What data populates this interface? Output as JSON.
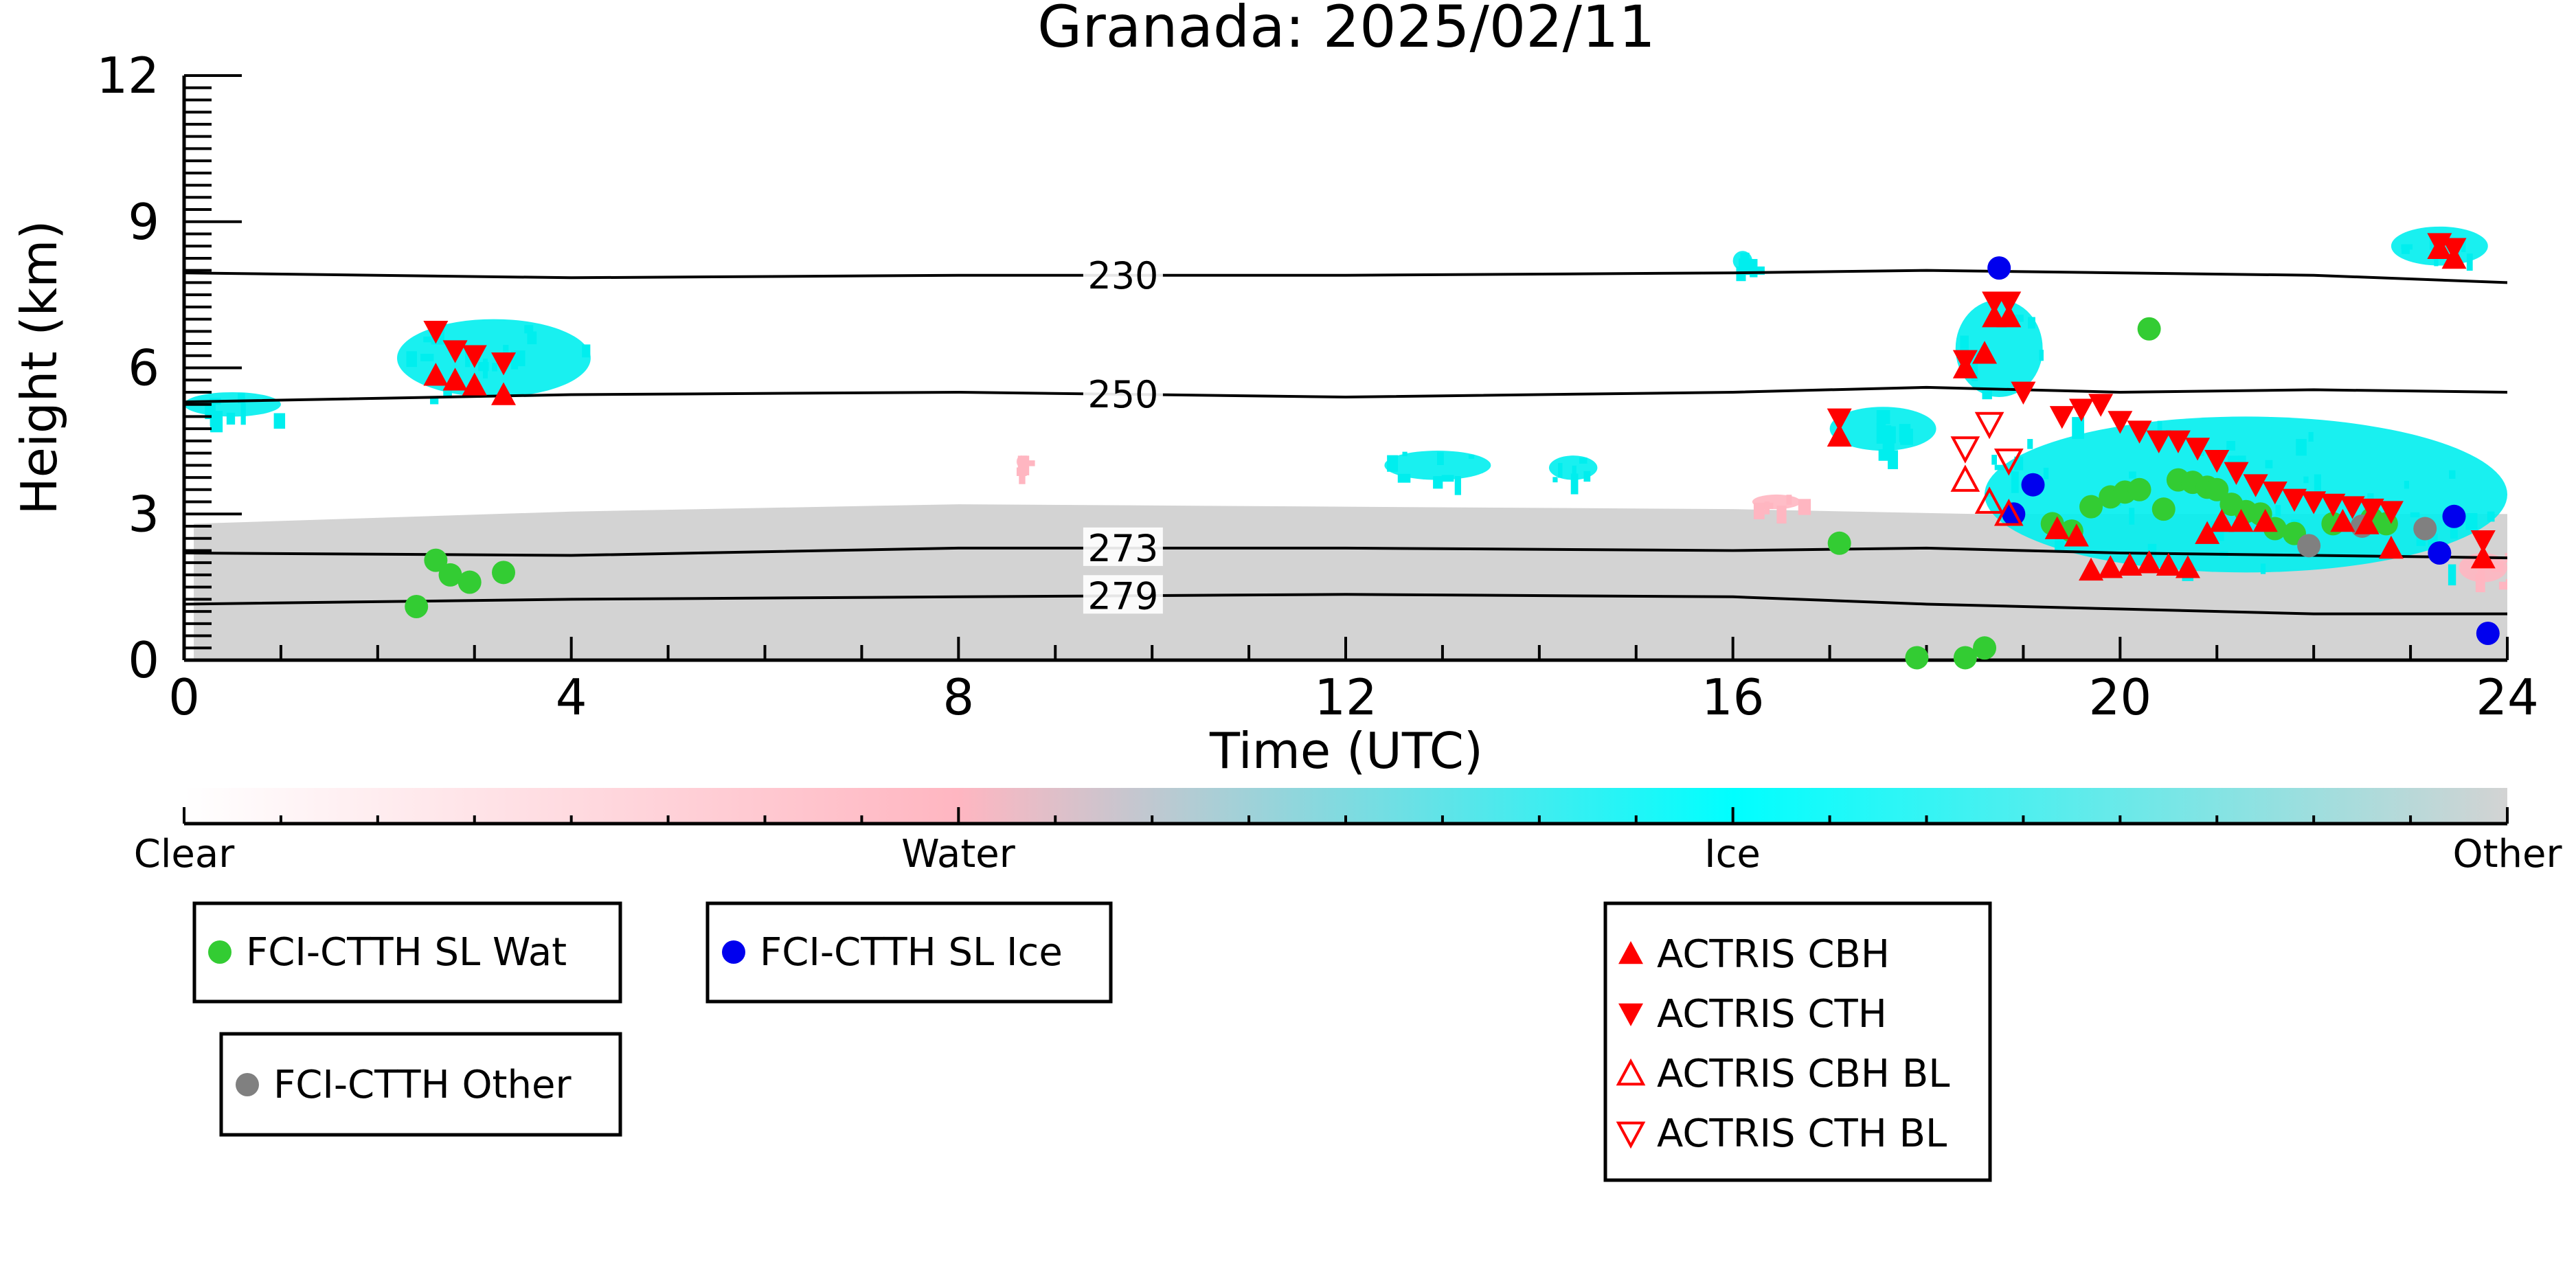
{
  "chart_data": {
    "type": "scatter",
    "title": "Granada: 2025/02/11",
    "xlabel": "Time (UTC)",
    "ylabel": "Height (km)",
    "xlim": [
      0,
      24
    ],
    "ylim": [
      0,
      12
    ],
    "xticks": [
      "0",
      "4",
      "8",
      "12",
      "16",
      "20",
      "24"
    ],
    "yticks": [
      "0",
      "3",
      "6",
      "9",
      "12"
    ],
    "colorbar": {
      "labels": [
        "Clear",
        "Water",
        "Ice",
        "Other"
      ],
      "colors": [
        "#ffffff",
        "#ffb6c1",
        "#00ffff",
        "#d3d3d3"
      ]
    },
    "colors": {
      "wat": "#33cc33",
      "ice": "#0000ee",
      "other": "#808080",
      "actris": "#ff0000",
      "cloud_ice": "#00eeee",
      "cloud_other": "#d3d3d3",
      "cloud_water": "#ffb6c1"
    },
    "isotherms": [
      {
        "label": "230",
        "points": [
          [
            0,
            7.95
          ],
          [
            4,
            7.85
          ],
          [
            8,
            7.9
          ],
          [
            12,
            7.9
          ],
          [
            16,
            7.95
          ],
          [
            18,
            8.0
          ],
          [
            20,
            7.95
          ],
          [
            22,
            7.9
          ],
          [
            24,
            7.75
          ]
        ]
      },
      {
        "label": "250",
        "points": [
          [
            0,
            5.3
          ],
          [
            4,
            5.45
          ],
          [
            8,
            5.5
          ],
          [
            12,
            5.4
          ],
          [
            16,
            5.5
          ],
          [
            18,
            5.6
          ],
          [
            20,
            5.5
          ],
          [
            22,
            5.55
          ],
          [
            24,
            5.5
          ]
        ]
      },
      {
        "label": "273",
        "points": [
          [
            0,
            2.2
          ],
          [
            4,
            2.15
          ],
          [
            8,
            2.3
          ],
          [
            12,
            2.3
          ],
          [
            16,
            2.25
          ],
          [
            18,
            2.3
          ],
          [
            20,
            2.2
          ],
          [
            22,
            2.15
          ],
          [
            24,
            2.1
          ]
        ]
      },
      {
        "label": "279",
        "points": [
          [
            0,
            1.15
          ],
          [
            4,
            1.25
          ],
          [
            8,
            1.3
          ],
          [
            12,
            1.35
          ],
          [
            16,
            1.3
          ],
          [
            18,
            1.15
          ],
          [
            20,
            1.05
          ],
          [
            22,
            0.95
          ],
          [
            24,
            0.95
          ]
        ]
      }
    ],
    "series": [
      {
        "name": "FCI-CTTH SL Wat",
        "points": [
          [
            2.4,
            1.1
          ],
          [
            2.6,
            2.05
          ],
          [
            2.75,
            1.75
          ],
          [
            2.95,
            1.6
          ],
          [
            3.3,
            1.8
          ],
          [
            17.1,
            2.4
          ],
          [
            17.9,
            0.05
          ],
          [
            18.4,
            0.05
          ],
          [
            18.6,
            0.25
          ],
          [
            19.3,
            2.8
          ],
          [
            19.5,
            2.65
          ],
          [
            19.7,
            3.15
          ],
          [
            19.9,
            3.35
          ],
          [
            20.05,
            3.45
          ],
          [
            20.2,
            3.5
          ],
          [
            20.3,
            6.8
          ],
          [
            20.45,
            3.1
          ],
          [
            20.6,
            3.7
          ],
          [
            20.75,
            3.65
          ],
          [
            20.9,
            3.55
          ],
          [
            21.0,
            3.5
          ],
          [
            21.15,
            3.2
          ],
          [
            21.3,
            3.05
          ],
          [
            21.45,
            3.0
          ],
          [
            21.6,
            2.7
          ],
          [
            21.8,
            2.6
          ],
          [
            22.2,
            2.8
          ],
          [
            22.6,
            2.9
          ],
          [
            22.75,
            2.8
          ]
        ]
      },
      {
        "name": "FCI-CTTH SL Ice",
        "points": [
          [
            18.75,
            8.05
          ],
          [
            18.9,
            3.0
          ],
          [
            19.1,
            3.6
          ],
          [
            23.3,
            2.2
          ],
          [
            23.45,
            2.95
          ],
          [
            23.8,
            0.55
          ]
        ]
      },
      {
        "name": "FCI-CTTH Other",
        "points": [
          [
            21.95,
            2.35
          ],
          [
            22.5,
            2.75
          ],
          [
            23.15,
            2.7
          ]
        ]
      },
      {
        "name": "ACTRIS CBH",
        "points": [
          [
            2.6,
            5.85
          ],
          [
            2.8,
            5.75
          ],
          [
            3.0,
            5.65
          ],
          [
            3.3,
            5.45
          ],
          [
            17.1,
            4.6
          ],
          [
            18.4,
            6.0
          ],
          [
            18.6,
            6.3
          ],
          [
            18.7,
            7.05
          ],
          [
            18.85,
            7.05
          ],
          [
            19.35,
            2.7
          ],
          [
            19.55,
            2.55
          ],
          [
            19.7,
            1.85
          ],
          [
            19.9,
            1.9
          ],
          [
            20.1,
            1.95
          ],
          [
            20.3,
            2.0
          ],
          [
            20.5,
            1.95
          ],
          [
            20.7,
            1.9
          ],
          [
            20.9,
            2.6
          ],
          [
            21.05,
            2.85
          ],
          [
            21.25,
            2.85
          ],
          [
            21.5,
            2.85
          ],
          [
            22.3,
            2.85
          ],
          [
            22.55,
            2.8
          ],
          [
            22.8,
            2.3
          ],
          [
            23.3,
            8.45
          ],
          [
            23.45,
            8.25
          ],
          [
            23.75,
            2.1
          ]
        ]
      },
      {
        "name": "ACTRIS CTH",
        "points": [
          [
            2.6,
            6.75
          ],
          [
            2.8,
            6.35
          ],
          [
            3.0,
            6.25
          ],
          [
            3.3,
            6.1
          ],
          [
            17.1,
            4.95
          ],
          [
            18.4,
            6.15
          ],
          [
            18.7,
            7.35
          ],
          [
            18.85,
            7.35
          ],
          [
            19.0,
            5.5
          ],
          [
            19.4,
            5.0
          ],
          [
            19.6,
            5.15
          ],
          [
            19.8,
            5.25
          ],
          [
            20.0,
            4.9
          ],
          [
            20.2,
            4.7
          ],
          [
            20.4,
            4.5
          ],
          [
            20.6,
            4.5
          ],
          [
            20.8,
            4.35
          ],
          [
            21.0,
            4.1
          ],
          [
            21.2,
            3.85
          ],
          [
            21.4,
            3.6
          ],
          [
            21.6,
            3.45
          ],
          [
            21.8,
            3.3
          ],
          [
            22.0,
            3.25
          ],
          [
            22.2,
            3.2
          ],
          [
            22.4,
            3.15
          ],
          [
            22.6,
            3.1
          ],
          [
            22.8,
            3.05
          ],
          [
            23.3,
            8.55
          ],
          [
            23.45,
            8.45
          ],
          [
            23.75,
            2.45
          ]
        ]
      },
      {
        "name": "ACTRIS CBH BL",
        "points": [
          [
            18.4,
            3.7
          ],
          [
            18.65,
            3.25
          ],
          [
            18.85,
            3.0
          ]
        ]
      },
      {
        "name": "ACTRIS CTH BL",
        "points": [
          [
            18.4,
            4.35
          ],
          [
            18.65,
            4.85
          ],
          [
            18.85,
            4.1
          ]
        ]
      }
    ],
    "cloud_regions": [
      {
        "phase": "ice",
        "x": [
          2.2,
          4.2
        ],
        "y": [
          5.4,
          7.0
        ]
      },
      {
        "phase": "ice",
        "x": [
          0.0,
          1.0
        ],
        "y": [
          5.0,
          5.5
        ]
      },
      {
        "phase": "ice",
        "x": [
          12.4,
          13.5
        ],
        "y": [
          3.7,
          4.3
        ]
      },
      {
        "phase": "ice",
        "x": [
          14.1,
          14.6
        ],
        "y": [
          3.7,
          4.2
        ]
      },
      {
        "phase": "ice",
        "x": [
          17.0,
          18.1
        ],
        "y": [
          4.3,
          5.2
        ]
      },
      {
        "phase": "ice",
        "x": [
          18.3,
          19.2
        ],
        "y": [
          5.4,
          7.4
        ]
      },
      {
        "phase": "ice",
        "x": [
          18.6,
          24.0
        ],
        "y": [
          1.8,
          5.0
        ]
      },
      {
        "phase": "ice",
        "x": [
          22.8,
          23.8
        ],
        "y": [
          8.1,
          8.9
        ]
      },
      {
        "phase": "ice",
        "x": [
          16.0,
          16.2
        ],
        "y": [
          8.0,
          8.4
        ]
      },
      {
        "phase": "water",
        "x": [
          8.6,
          8.7
        ],
        "y": [
          3.95,
          4.2
        ]
      },
      {
        "phase": "water",
        "x": [
          16.2,
          16.7
        ],
        "y": [
          3.1,
          3.4
        ]
      },
      {
        "phase": "water",
        "x": [
          23.5,
          24.0
        ],
        "y": [
          1.6,
          2.2
        ]
      }
    ]
  },
  "legend": {
    "wat": "FCI-CTTH SL Wat",
    "ice": "FCI-CTTH SL Ice",
    "other": "FCI-CTTH Other",
    "cbh": "ACTRIS CBH",
    "cth": "ACTRIS CTH",
    "cbh_bl": "ACTRIS CBH BL",
    "cth_bl": "ACTRIS CTH BL"
  }
}
